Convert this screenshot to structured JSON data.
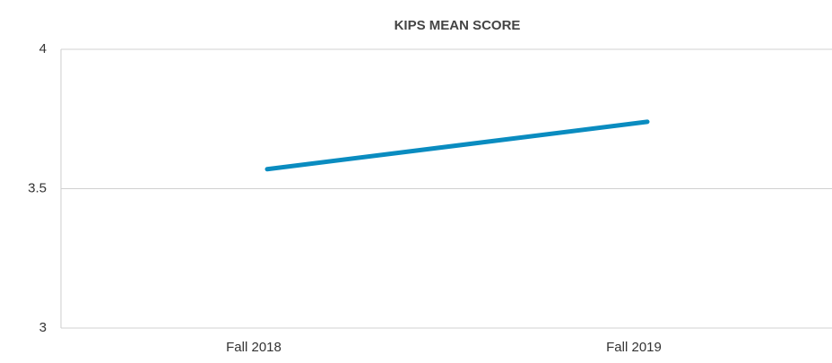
{
  "chart_data": {
    "type": "line",
    "title": "KIPS MEAN SCORE",
    "categories": [
      "Fall 2018",
      "Fall 2019"
    ],
    "series": [
      {
        "name": "KIPS Mean Score",
        "color": "#0a8cc0",
        "values": [
          3.57,
          3.74
        ]
      }
    ],
    "ylim": [
      3,
      4
    ],
    "yticks": [
      3,
      3.5,
      4
    ],
    "grid": true
  }
}
